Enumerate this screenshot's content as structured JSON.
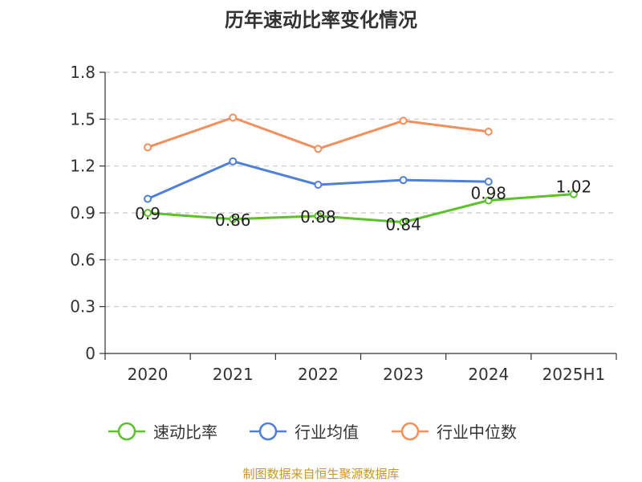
{
  "chart_data": {
    "type": "line",
    "title": "历年速动比率变化情况",
    "categories": [
      "2020",
      "2021",
      "2022",
      "2023",
      "2024",
      "2025H1"
    ],
    "ylim": [
      0,
      1.8
    ],
    "yticks": [
      "0",
      "0.3",
      "0.6",
      "0.9",
      "1.2",
      "1.5",
      "1.8"
    ],
    "grid": true,
    "legend_position": "bottom",
    "series": [
      {
        "name": "速动比率",
        "color": "#5cc12a",
        "values": [
          0.9,
          0.86,
          0.88,
          0.84,
          0.98,
          1.02
        ],
        "labels": [
          "0.9",
          "0.86",
          "0.88",
          "0.84",
          "0.98",
          "1.02"
        ]
      },
      {
        "name": "行业均值",
        "color": "#4f7fd9",
        "values": [
          0.99,
          1.23,
          1.08,
          1.11,
          1.1,
          null
        ]
      },
      {
        "name": "行业中位数",
        "color": "#f28f5c",
        "values": [
          1.32,
          1.51,
          1.31,
          1.49,
          1.42,
          null
        ]
      }
    ]
  },
  "source": "制图数据来自恒生聚源数据库"
}
